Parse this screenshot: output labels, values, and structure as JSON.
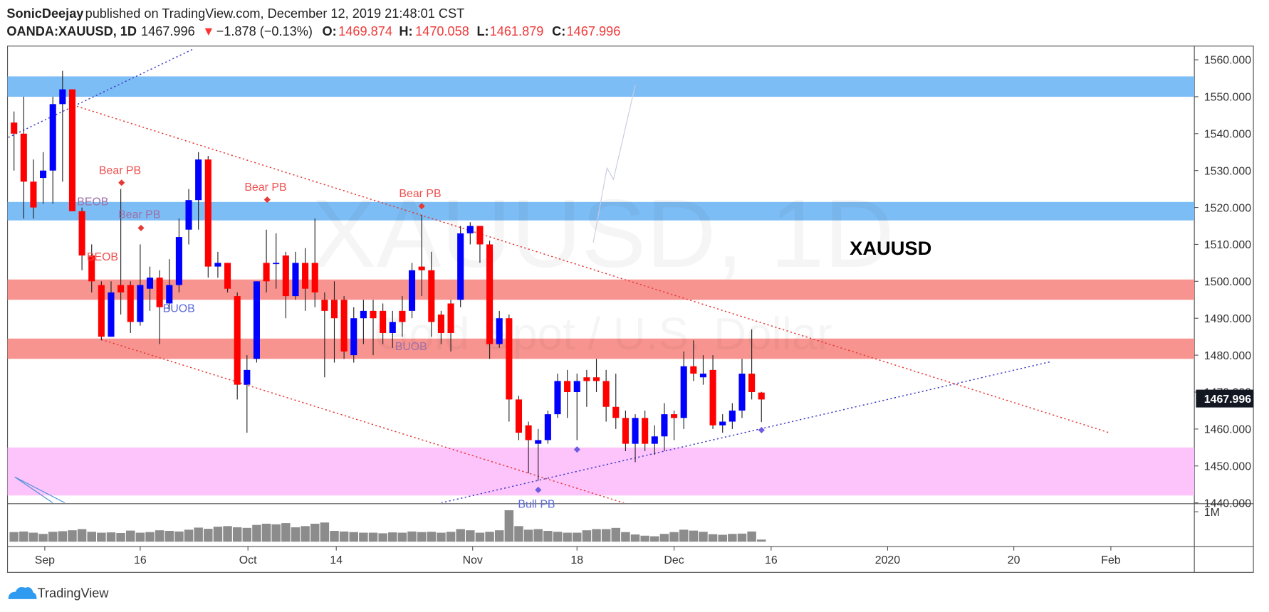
{
  "header": {
    "author": "SonicDeejay",
    "published": "published on TradingView.com, December 12, 2019 21:48:01 CST",
    "symbol": "OANDA:XAUUSD, 1D",
    "price": "1467.996",
    "change": "−1.878 (−0.13%)",
    "o_label": "O:",
    "o": "1469.874",
    "h_label": "H:",
    "h": "1470.058",
    "l_label": "L:",
    "l": "1461.879",
    "c_label": "C:",
    "c": "1467.996"
  },
  "footer": {
    "brand": "TradingView"
  },
  "chart_data": {
    "type": "candlestick",
    "title": "XAUUSD",
    "watermark": "XAUUSD, 1D",
    "watermark_sub": "Gold Spot / U.S. Dollar",
    "up_color": "#0000ff",
    "down_color": "#ff0000",
    "volume_color": "#8c8c8c",
    "open": [
      1543,
      1540,
      1527,
      1528,
      1530,
      1548,
      1552,
      1519,
      1507,
      1499,
      1485,
      1499,
      1499,
      1489,
      1498,
      1501,
      1494,
      1499,
      1514,
      1522,
      1533,
      1504,
      1505,
      1496,
      1472,
      1479,
      1505,
      1505,
      1507,
      1496,
      1505,
      1505,
      1495,
      1495,
      1495,
      1480,
      1490,
      1492,
      1492,
      1486,
      1492,
      1492,
      1504,
      1503,
      1491,
      1494,
      1495,
      1513,
      1515,
      1510,
      1483,
      1490,
      1468,
      1461,
      1456,
      1457,
      1464,
      1473,
      1470,
      1474,
      1474,
      1473,
      1466,
      1463,
      1456,
      1463,
      1456,
      1458,
      1464,
      1463,
      1477,
      1474,
      1476,
      1461,
      1462,
      1465,
      1475,
      1469.874
    ],
    "high": [
      1546,
      1550,
      1533,
      1535,
      1550,
      1557,
      1552,
      1520,
      1510,
      1500,
      1500,
      1525,
      1500,
      1510,
      1504,
      1503,
      1506,
      1517,
      1525,
      1535,
      1534,
      1508,
      1505,
      1497,
      1480,
      1500,
      1514,
      1513,
      1508,
      1508,
      1509,
      1517,
      1497,
      1500,
      1496,
      1493,
      1495,
      1495,
      1494,
      1492,
      1496,
      1505,
      1518,
      1508,
      1492,
      1495,
      1515,
      1516,
      1515,
      1511,
      1492,
      1491,
      1469,
      1462,
      1460,
      1465,
      1475,
      1476,
      1475,
      1476,
      1479,
      1476,
      1475,
      1465,
      1464,
      1465,
      1461,
      1467,
      1465,
      1481,
      1484,
      1480,
      1480,
      1464,
      1467,
      1479,
      1487,
      1470.058
    ],
    "low": [
      1530,
      1517,
      1517,
      1521,
      1521,
      1527,
      1519,
      1503,
      1497,
      1484,
      1485,
      1491,
      1486,
      1488,
      1492,
      1483,
      1492,
      1497,
      1510,
      1514,
      1501,
      1501,
      1497,
      1468,
      1459,
      1478,
      1497,
      1498,
      1490,
      1495,
      1492,
      1493,
      1474,
      1478,
      1479,
      1478,
      1483,
      1480,
      1483,
      1482,
      1485,
      1490,
      1496,
      1485,
      1483,
      1481,
      1493,
      1510,
      1505,
      1479,
      1482,
      1462,
      1457,
      1448,
      1446,
      1456,
      1463,
      1463,
      1457,
      1466,
      1470,
      1462,
      1460,
      1454,
      1451,
      1454,
      1453,
      1454,
      1457,
      1460,
      1473,
      1472,
      1460,
      1459,
      1460,
      1463,
      1468,
      1461.879
    ],
    "close": [
      1540,
      1527,
      1520,
      1530,
      1548,
      1552,
      1519,
      1507,
      1500,
      1485,
      1497,
      1497,
      1489,
      1499,
      1501,
      1493,
      1499,
      1512,
      1522,
      1533,
      1504,
      1505,
      1498,
      1472,
      1476,
      1500,
      1500,
      1505,
      1496,
      1505,
      1498,
      1497,
      1492,
      1490,
      1481,
      1490,
      1492,
      1490,
      1486,
      1489,
      1489,
      1503,
      1503,
      1489,
      1486,
      1486,
      1513,
      1515,
      1510,
      1483,
      1490,
      1468,
      1459,
      1457,
      1457,
      1464,
      1473,
      1470,
      1473,
      1473,
      1473,
      1466,
      1463,
      1456,
      1463,
      1456,
      1458,
      1464,
      1463,
      1477,
      1475,
      1475,
      1461,
      1462,
      1465,
      1475,
      1470,
      1467.996
    ],
    "volume": [
      320000,
      340000,
      300000,
      260000,
      330000,
      350000,
      380000,
      420000,
      330000,
      300000,
      310000,
      290000,
      370000,
      300000,
      320000,
      380000,
      360000,
      340000,
      400000,
      470000,
      430000,
      500000,
      520000,
      480000,
      460000,
      560000,
      600000,
      580000,
      620000,
      480000,
      520000,
      600000,
      640000,
      360000,
      340000,
      320000,
      300000,
      300000,
      280000,
      310000,
      300000,
      340000,
      320000,
      330000,
      300000,
      330000,
      420000,
      380000,
      300000,
      330000,
      380000,
      1050000,
      520000,
      400000,
      420000,
      360000,
      330000,
      300000,
      300000,
      380000,
      420000,
      420000,
      460000,
      320000,
      240000,
      200000,
      180000,
      260000,
      320000,
      400000,
      370000,
      330000,
      250000,
      230000,
      260000,
      270000,
      340000,
      70000
    ],
    "ylim": [
      1440,
      1563.5
    ],
    "yticks": [
      {
        "value": 1440,
        "label": "1440.000"
      },
      {
        "value": 1450,
        "label": "1450.000"
      },
      {
        "value": 1460,
        "label": "1460.000"
      },
      {
        "value": 1470,
        "label": "1470.000"
      },
      {
        "value": 1480,
        "label": "1480.000"
      },
      {
        "value": 1490,
        "label": "1490.000"
      },
      {
        "value": 1500,
        "label": "1500.000"
      },
      {
        "value": 1510,
        "label": "1510.000"
      },
      {
        "value": 1520,
        "label": "1520.000"
      },
      {
        "value": 1530,
        "label": "1530.000"
      },
      {
        "value": 1540,
        "label": "1540.000"
      },
      {
        "value": 1550,
        "label": "1550.000"
      },
      {
        "value": 1560,
        "label": "1560.000"
      }
    ],
    "vlim": [
      0,
      1243000
    ],
    "vticks": [
      {
        "value": 1000000,
        "label": "1M"
      }
    ],
    "xlim": [
      -0.67,
      121.6
    ],
    "xticks": [
      {
        "value": 3.17,
        "label": "Sep"
      },
      {
        "value": 13,
        "label": "16"
      },
      {
        "value": 24.1,
        "label": "Oct"
      },
      {
        "value": 33.2,
        "label": "14"
      },
      {
        "value": 47.25,
        "label": "Nov"
      },
      {
        "value": 58,
        "label": "18"
      },
      {
        "value": 68,
        "label": "Dec"
      },
      {
        "value": 78,
        "label": "16"
      },
      {
        "value": 90,
        "label": "2020"
      },
      {
        "value": 103,
        "label": "20"
      },
      {
        "value": 113,
        "label": "Feb"
      }
    ],
    "zones": [
      {
        "from": 1550,
        "to": 1555.5,
        "color": "#7dbdf5"
      },
      {
        "from": 1516.5,
        "to": 1521.5,
        "color": "#7dbdf5"
      },
      {
        "from": 1495,
        "to": 1500.5,
        "color": "#f89490"
      },
      {
        "from": 1479,
        "to": 1484.5,
        "color": "#f89490"
      },
      {
        "from": 1442,
        "to": 1455,
        "color": "#fdc3fb"
      }
    ],
    "annotations": [
      "Bear PB",
      "Bear PB",
      "BEOB",
      "BEOB",
      "Bear PB",
      "BUOB",
      "Bear PB",
      "BUOB",
      "Bull PB"
    ]
  }
}
